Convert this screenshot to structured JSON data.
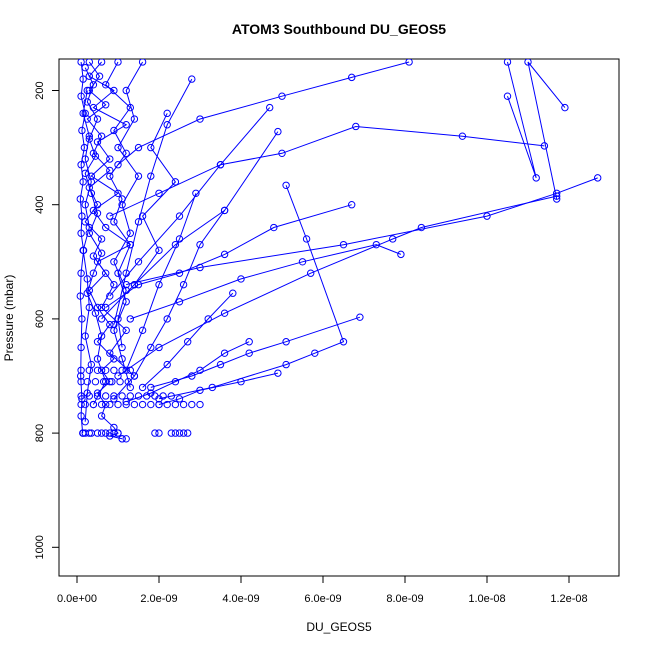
{
  "chart_data": {
    "type": "line",
    "title": "ATOM3 Southbound DU_GEOS5",
    "xlabel": "DU_GEOS5",
    "ylabel": "Pressure (mbar)",
    "xlim": [
      0,
      1.3e-08
    ],
    "ylim": [
      1050,
      150
    ],
    "y_reversed": true,
    "x_ticks": [
      0,
      2e-09,
      4e-09,
      6e-09,
      8e-09,
      1e-08,
      1.2e-08
    ],
    "x_tick_labels": [
      "0.0e+00",
      "2.0e-09",
      "4.0e-09",
      "6.0e-09",
      "8.0e-09",
      "1.0e-08",
      "1.2e-08"
    ],
    "y_ticks": [
      200,
      400,
      600,
      800,
      1000
    ],
    "y_tick_labels": [
      "200",
      "400",
      "600",
      "800",
      "1000"
    ],
    "grid": false,
    "marker": "open-circle",
    "color": "#0000ff",
    "series": [
      {
        "x": [
          3e-10,
          5.5e-10,
          3e-10,
          7e-10,
          2.5e-10,
          6e-10,
          4e-10,
          8e-10,
          3e-10,
          5e-10,
          2e-10,
          6e-10,
          4e-10,
          7e-10,
          3e-10,
          5e-10,
          8e-10,
          5e-10,
          9e-10,
          6e-10,
          8e-10,
          5e-10,
          7e-10,
          6e-10,
          9e-10,
          1e-09,
          8e-10,
          1.1e-09
        ],
        "y": [
          150,
          175,
          200,
          225,
          250,
          280,
          310,
          340,
          370,
          400,
          430,
          460,
          490,
          520,
          550,
          580,
          610,
          640,
          670,
          690,
          710,
          730,
          750,
          770,
          790,
          800,
          805,
          810
        ]
      },
      {
        "x": [
          1e-10,
          1.5e-10,
          1e-10,
          2e-10,
          1.2e-10,
          1.8e-10,
          1e-10,
          1.5e-10,
          8e-11,
          1.2e-10,
          1e-10,
          1.6e-10,
          1e-10,
          8e-11,
          1.2e-10,
          1e-10,
          9e-11,
          1.2e-10,
          1e-10,
          1.4e-10
        ],
        "y": [
          150,
          180,
          210,
          240,
          270,
          300,
          330,
          360,
          390,
          420,
          450,
          480,
          520,
          560,
          600,
          650,
          700,
          740,
          770,
          800
        ]
      },
      {
        "x": [
          6e-10,
          3e-10,
          9e-10,
          4e-10,
          1.2e-09,
          5e-10,
          8e-10,
          3.5e-10,
          1e-09,
          4e-10,
          7e-10,
          1.3e-09,
          5e-10,
          9e-10,
          6e-10,
          1.2e-09,
          8e-10,
          1.4e-09,
          9e-10
        ],
        "y": [
          150,
          175,
          200,
          230,
          260,
          290,
          320,
          350,
          380,
          410,
          440,
          470,
          500,
          540,
          580,
          620,
          660,
          700,
          740
        ]
      },
      {
        "x": [
          2e-10,
          4e-10,
          2.5e-10,
          5e-10,
          3e-10,
          4.5e-10,
          2e-10,
          3.5e-10,
          5e-10,
          3e-10,
          6e-10,
          4e-10,
          2.5e-10,
          4.5e-10,
          6e-10,
          5e-10,
          7e-10,
          4e-10
        ],
        "y": [
          160,
          190,
          220,
          250,
          285,
          315,
          345,
          380,
          415,
          450,
          485,
          520,
          555,
          590,
          630,
          670,
          710,
          750
        ]
      },
      {
        "x": [
          1e-09,
          7e-10,
          1.3e-09,
          9e-10,
          1.2e-09,
          8e-10,
          1.1e-09,
          9e-10,
          1.3e-09,
          1e-09,
          1.2e-09,
          9e-10,
          1.1e-09,
          1.3e-09
        ],
        "y": [
          150,
          190,
          230,
          270,
          310,
          350,
          390,
          430,
          470,
          520,
          570,
          620,
          670,
          720
        ]
      },
      {
        "x": [
          2.5e-10,
          1.5e-10,
          3e-10,
          2e-10,
          3.5e-10,
          2e-10,
          3e-10,
          1.5e-10,
          2.5e-10,
          3e-10,
          2e-10,
          3.5e-10,
          2.5e-10,
          2e-10
        ],
        "y": [
          200,
          240,
          280,
          320,
          360,
          400,
          440,
          480,
          530,
          580,
          630,
          680,
          730,
          780
        ]
      },
      {
        "x": [
          1.6e-09,
          1.2e-09,
          1.4e-09,
          1e-09,
          1.5e-09,
          1.1e-09,
          1.3e-09,
          9e-10,
          1.2e-09,
          1e-09,
          1.1e-09
        ],
        "y": [
          150,
          200,
          250,
          300,
          350,
          400,
          450,
          500,
          550,
          600,
          650
        ]
      },
      {
        "x": [
          8.1e-09,
          6.7e-09,
          5e-09,
          3e-09,
          1.5e-09,
          1e-09
        ],
        "y": [
          150,
          177,
          210,
          250,
          300,
          330
        ]
      },
      {
        "x": [
          1.05e-08,
          1.12e-08,
          1.05e-08
        ],
        "y": [
          150,
          353,
          210
        ]
      },
      {
        "x": [
          1.19e-08,
          1.1e-08,
          1.17e-08
        ],
        "y": [
          230,
          150,
          390
        ]
      },
      {
        "x": [
          1.27e-08,
          1.17e-08,
          1e-08,
          6.5e-09,
          3e-09,
          1.2e-09
        ],
        "y": [
          353,
          380,
          420,
          470,
          510,
          540
        ]
      },
      {
        "x": [
          1.17e-08,
          8.4e-09,
          7.7e-09,
          5.7e-09,
          3.6e-09,
          2e-09,
          1e-09
        ],
        "y": [
          385,
          440,
          460,
          520,
          590,
          650,
          700
        ]
      },
      {
        "x": [
          1.14e-08,
          9.4e-09,
          6.8e-09,
          5e-09,
          3.5e-09,
          2e-09,
          8e-10
        ],
        "y": [
          297,
          280,
          263,
          310,
          330,
          380,
          420
        ]
      },
      {
        "x": [
          6.7e-09,
          4.8e-09,
          3.6e-09,
          2.5e-09,
          1.5e-09,
          7e-10
        ],
        "y": [
          400,
          440,
          487,
          520,
          540,
          580
        ]
      },
      {
        "x": [
          7.9e-09,
          7.3e-09,
          5.5e-09,
          4e-09,
          2.5e-09,
          1.3e-09
        ],
        "y": [
          487,
          470,
          500,
          530,
          570,
          600
        ]
      },
      {
        "x": [
          5.1e-09,
          5.6e-09,
          6.5e-09,
          5.8e-09,
          5.1e-09,
          3.3e-09,
          2e-09
        ],
        "y": [
          366,
          460,
          640,
          660,
          680,
          720,
          740
        ]
      },
      {
        "x": [
          6.9e-09,
          5.1e-09,
          4.2e-09,
          3.5e-09,
          2.8e-09,
          1.8e-09
        ],
        "y": [
          597,
          640,
          660,
          680,
          700,
          720
        ]
      },
      {
        "x": [
          4.9e-09,
          4e-09,
          3e-09,
          2.5e-09,
          2e-09
        ],
        "y": [
          695,
          710,
          725,
          740,
          750
        ]
      },
      {
        "x": [
          4.7e-09,
          3.5e-09,
          2.5e-09,
          1.5e-09,
          8e-10
        ],
        "y": [
          230,
          330,
          420,
          500,
          560
        ]
      },
      {
        "x": [
          4.9e-09,
          3.6e-09,
          2.4e-09,
          1.4e-09,
          6e-10
        ],
        "y": [
          272,
          410,
          470,
          540,
          600
        ]
      },
      {
        "x": [
          2.8e-09,
          2.2e-09,
          1.8e-09,
          1.5e-09,
          1.2e-09,
          9e-10
        ],
        "y": [
          180,
          260,
          350,
          430,
          520,
          610
        ]
      },
      {
        "x": [
          3.6e-09,
          3e-09,
          2.6e-09,
          2.2e-09,
          1.8e-09,
          1.4e-09
        ],
        "y": [
          410,
          470,
          540,
          600,
          650,
          700
        ]
      },
      {
        "x": [
          3.8e-09,
          3.2e-09,
          2.7e-09,
          2.2e-09,
          1.6e-09
        ],
        "y": [
          555,
          600,
          640,
          680,
          720
        ]
      },
      {
        "x": [
          4.2e-09,
          3.6e-09,
          3e-09,
          2.4e-09,
          1.8e-09,
          1.2e-09
        ],
        "y": [
          640,
          660,
          690,
          710,
          730,
          745
        ]
      },
      {
        "x": [
          2.2e-09,
          1.8e-09,
          2.4e-09,
          1.6e-09,
          2e-09,
          1.4e-09
        ],
        "y": [
          240,
          300,
          360,
          420,
          480,
          540
        ]
      },
      {
        "x": [
          2.9e-09,
          2.5e-09,
          2e-09,
          1.6e-09,
          1.2e-09
        ],
        "y": [
          380,
          460,
          540,
          620,
          690
        ]
      }
    ],
    "scatter_extra": {
      "x": [
        1.5e-10,
        2e-10,
        3e-10,
        3.5e-10,
        5e-10,
        6e-10,
        7e-10,
        8e-10,
        9e-10,
        1e-09,
        1.1e-09,
        1.2e-09,
        1.9e-09,
        2e-09,
        2.3e-09,
        2.4e-09,
        2.5e-09,
        2.6e-09,
        2.7e-09,
        1e-10,
        2e-10,
        4e-10,
        6e-10,
        8e-10,
        1e-09,
        1.2e-09,
        1.4e-09,
        1.6e-09,
        1.8e-09,
        2e-09,
        2.2e-09,
        2.4e-09,
        2.6e-09,
        2.8e-09,
        3e-09,
        1e-10,
        3e-10,
        5e-10,
        7e-10,
        9e-10,
        1.1e-09,
        1.3e-09,
        1.5e-09,
        1.7e-09,
        1.9e-09,
        2.1e-09,
        2.3e-09,
        1e-10,
        2.5e-10,
        4.5e-10,
        6.5e-10,
        8.5e-10,
        1.05e-09,
        1.25e-09,
        1e-10,
        3e-10,
        5e-10,
        7e-10,
        9e-10,
        1.1e-09,
        1.3e-09
      ],
      "y": [
        800,
        800,
        800,
        800,
        800,
        800,
        800,
        800,
        800,
        800,
        810,
        810,
        800,
        800,
        800,
        800,
        800,
        800,
        800,
        750,
        750,
        750,
        750,
        750,
        750,
        750,
        750,
        750,
        750,
        750,
        750,
        750,
        750,
        750,
        750,
        735,
        735,
        735,
        735,
        735,
        735,
        735,
        735,
        735,
        735,
        735,
        735,
        710,
        710,
        710,
        710,
        710,
        710,
        710,
        690,
        690,
        690,
        690,
        690,
        690,
        690
      ]
    }
  }
}
